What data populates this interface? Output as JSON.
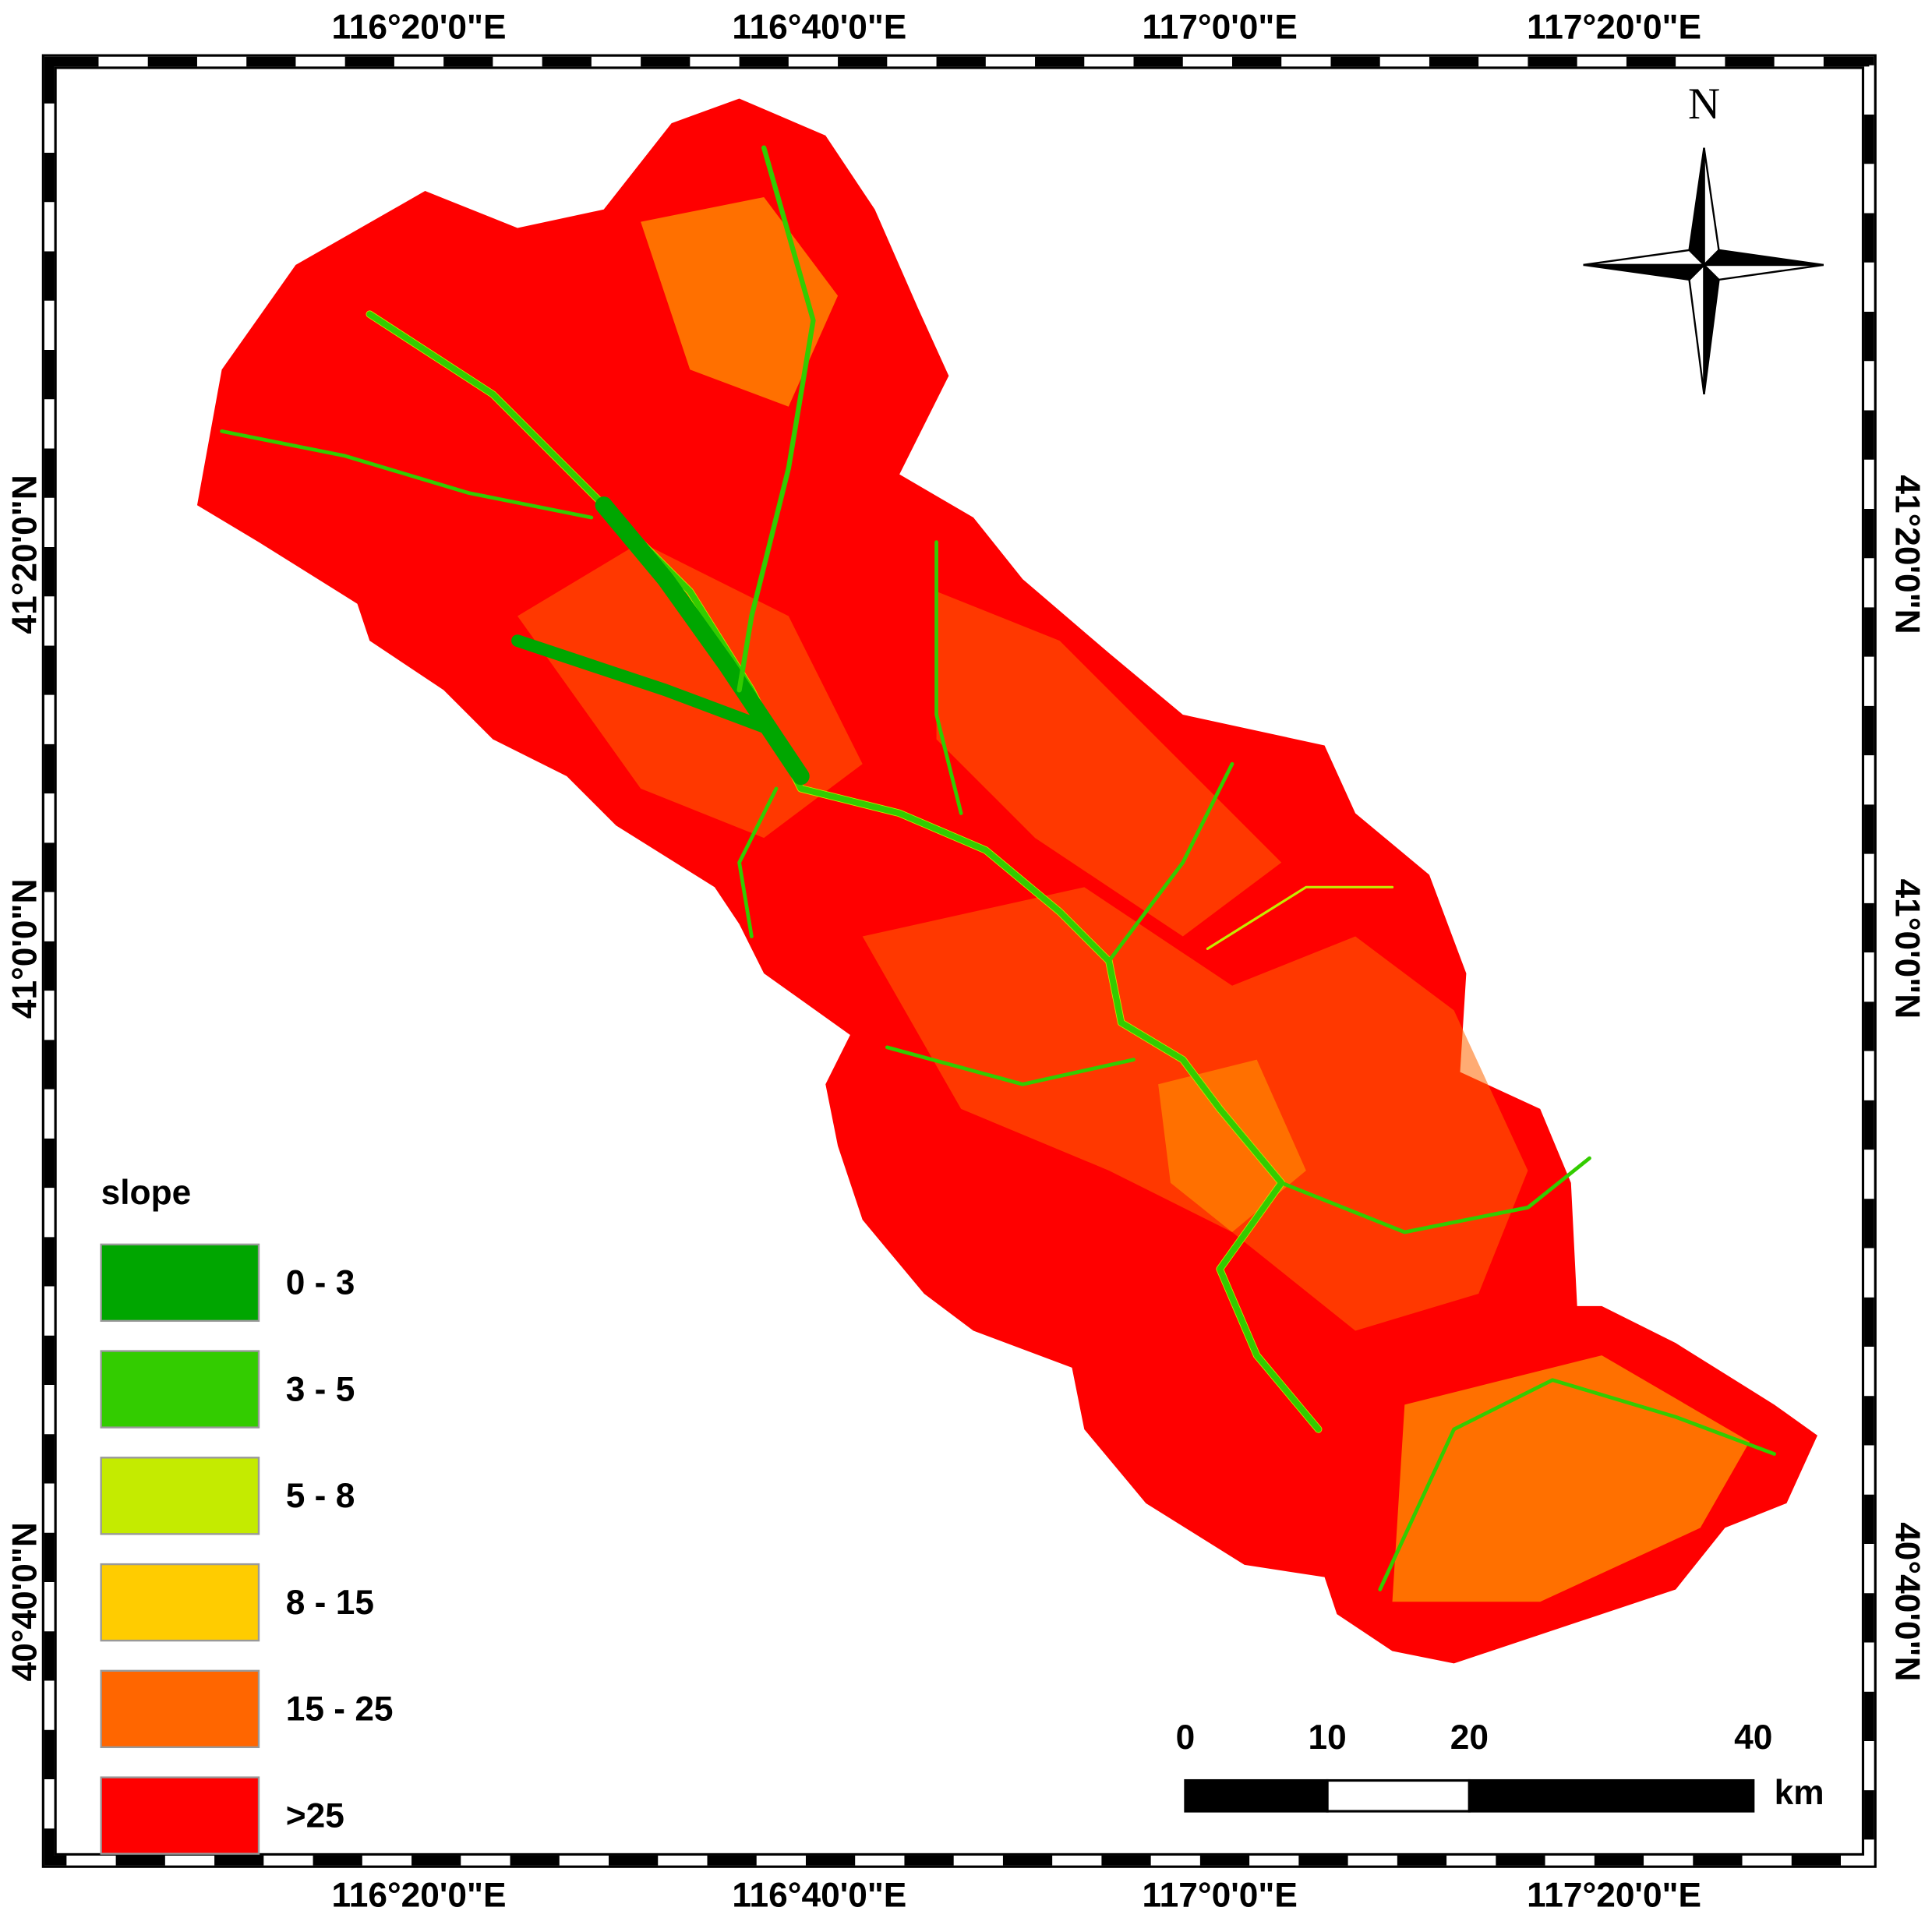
{
  "map": {
    "top_labels": [
      "116°20'0\"E",
      "116°40'0\"E",
      "117°0'0\"E",
      "117°20'0\"E"
    ],
    "bottom_labels": [
      "116°20'0\"E",
      "116°40'0\"E",
      "117°0'0\"E",
      "117°20'0\"E"
    ],
    "left_labels": [
      "41°20'0\"N",
      "41°0'0\"N",
      "40°40'0\"N"
    ],
    "right_labels": [
      "41°20'0\"N",
      "41°0'0\"N",
      "40°40'0\"N"
    ],
    "north": "N",
    "legend": {
      "title": "slope",
      "items": [
        {
          "label": "0 - 3",
          "color": "#00a600"
        },
        {
          "label": "3 - 5",
          "color": "#33cc00"
        },
        {
          "label": "5 - 8",
          "color": "#c4eb00"
        },
        {
          "label": "8 - 15",
          "color": "#ffcc00"
        },
        {
          "label": "15 - 25",
          "color": "#ff6600"
        },
        {
          "label": ">25",
          "color": "#ff0000"
        }
      ]
    },
    "scale_bar": {
      "ticks": [
        0,
        10,
        20,
        40
      ],
      "unit": "km"
    }
  }
}
